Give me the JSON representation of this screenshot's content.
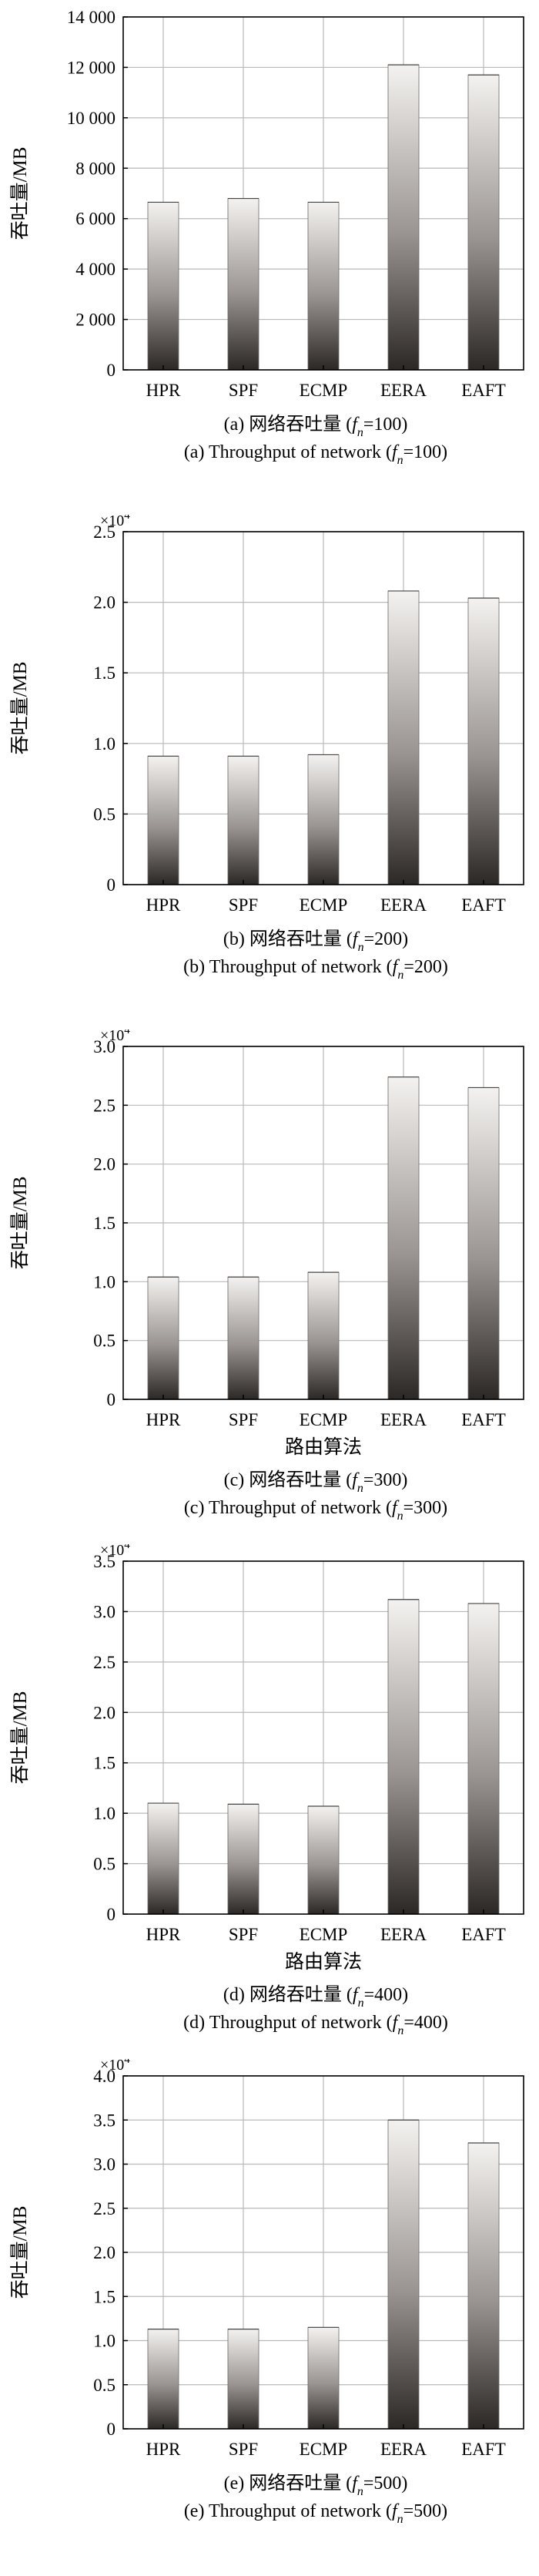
{
  "x_axis_title": "路由算法",
  "y_axis_title": "吞吐量/MB",
  "chart_data": [
    {
      "type": "bar",
      "categories": [
        "HPR",
        "SPF",
        "ECMP",
        "EERA",
        "EAFT"
      ],
      "values": [
        6650,
        6800,
        6650,
        12100,
        11700
      ],
      "ylim": [
        0,
        14000
      ],
      "yticks": [
        0,
        2000,
        4000,
        6000,
        8000,
        10000,
        12000,
        14000
      ],
      "ytick_labels": [
        "0",
        "2 000",
        "4 000",
        "6 000",
        "8 000",
        "10 000",
        "12 000",
        "14 000"
      ],
      "multiplier_base": "",
      "multiplier_exp": "",
      "show_xlabel": false,
      "caption_cn_prefix": "(a) 网络吞吐量 (",
      "caption_en_prefix": "(a) Throughput of network (",
      "f_symbol": "f",
      "f_subscript": "n",
      "f_value": "=100)",
      "grid": true
    },
    {
      "type": "bar",
      "categories": [
        "HPR",
        "SPF",
        "ECMP",
        "EERA",
        "EAFT"
      ],
      "values": [
        0.91,
        0.91,
        0.92,
        2.08,
        2.03
      ],
      "ylim": [
        0,
        2.5
      ],
      "yticks": [
        0,
        0.5,
        1.0,
        1.5,
        2.0,
        2.5
      ],
      "ytick_labels": [
        "0",
        "0.5",
        "1.0",
        "1.5",
        "2.0",
        "2.5"
      ],
      "multiplier_base": "×10",
      "multiplier_exp": "4",
      "show_xlabel": false,
      "caption_cn_prefix": "(b) 网络吞吐量 (",
      "caption_en_prefix": "(b) Throughput of network (",
      "f_symbol": "f",
      "f_subscript": "n",
      "f_value": "=200)",
      "grid": true
    },
    {
      "type": "bar",
      "categories": [
        "HPR",
        "SPF",
        "ECMP",
        "EERA",
        "EAFT"
      ],
      "values": [
        1.04,
        1.04,
        1.08,
        2.74,
        2.65
      ],
      "ylim": [
        0,
        3.0
      ],
      "yticks": [
        0,
        0.5,
        1.0,
        1.5,
        2.0,
        2.5,
        3.0
      ],
      "ytick_labels": [
        "0",
        "0.5",
        "1.0",
        "1.5",
        "2.0",
        "2.5",
        "3.0"
      ],
      "multiplier_base": "×10",
      "multiplier_exp": "4",
      "show_xlabel": true,
      "caption_cn_prefix": "(c) 网络吞吐量 (",
      "caption_en_prefix": "(c) Throughput of network (",
      "f_symbol": "f",
      "f_subscript": "n",
      "f_value": "=300)",
      "grid": true
    },
    {
      "type": "bar",
      "categories": [
        "HPR",
        "SPF",
        "ECMP",
        "EERA",
        "EAFT"
      ],
      "values": [
        1.1,
        1.09,
        1.07,
        3.12,
        3.08
      ],
      "ylim": [
        0,
        3.5
      ],
      "yticks": [
        0,
        0.5,
        1.0,
        1.5,
        2.0,
        2.5,
        3.0,
        3.5
      ],
      "ytick_labels": [
        "0",
        "0.5",
        "1.0",
        "1.5",
        "2.0",
        "2.5",
        "3.0",
        "3.5"
      ],
      "multiplier_base": "×10",
      "multiplier_exp": "4",
      "show_xlabel": true,
      "caption_cn_prefix": "(d) 网络吞吐量 (",
      "caption_en_prefix": "(d) Throughput of network (",
      "f_symbol": "f",
      "f_subscript": "n",
      "f_value": "=400)",
      "grid": true
    },
    {
      "type": "bar",
      "categories": [
        "HPR",
        "SPF",
        "ECMP",
        "EERA",
        "EAFT"
      ],
      "values": [
        1.13,
        1.13,
        1.15,
        3.5,
        3.24
      ],
      "ylim": [
        0,
        4.0
      ],
      "yticks": [
        0,
        0.5,
        1.0,
        1.5,
        2.0,
        2.5,
        3.0,
        3.5,
        4.0
      ],
      "ytick_labels": [
        "0",
        "0.5",
        "1.0",
        "1.5",
        "2.0",
        "2.5",
        "3.0",
        "3.5",
        "4.0"
      ],
      "multiplier_base": "×10",
      "multiplier_exp": "4",
      "show_xlabel": false,
      "caption_cn_prefix": "(e) 网络吞吐量 (",
      "caption_en_prefix": "(e) Throughput of network (",
      "f_symbol": "f",
      "f_subscript": "n",
      "f_value": "=500)",
      "grid": true
    }
  ]
}
